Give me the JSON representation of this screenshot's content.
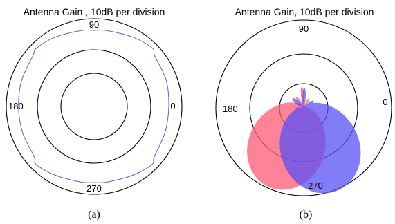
{
  "chart_data": [
    {
      "type": "polar",
      "title": "Antenna Gain , 10dB per division",
      "angle_labels": [
        "90",
        "180",
        "0",
        "270"
      ],
      "caption": "(a)",
      "radial_divisions": 3,
      "series": [
        {
          "color": "#5a5af0",
          "style": "line",
          "angles_deg": [
            0,
            20,
            40,
            45,
            60,
            80,
            90,
            100,
            120,
            135,
            140,
            160,
            180,
            200,
            220,
            225,
            240,
            260,
            270,
            280,
            300,
            315,
            320,
            340
          ],
          "radius_divisions": [
            2.55,
            2.62,
            2.7,
            2.82,
            2.72,
            2.63,
            2.6,
            2.63,
            2.72,
            2.8,
            2.72,
            2.63,
            2.58,
            2.6,
            2.67,
            2.8,
            2.7,
            2.62,
            2.6,
            2.62,
            2.7,
            2.8,
            2.68,
            2.58
          ]
        }
      ]
    },
    {
      "type": "polar",
      "title": "Antenna Gain, 10dB per division",
      "angle_labels": [
        "90",
        "180",
        "0",
        "270"
      ],
      "caption": "(b)",
      "radial_divisions": 3,
      "series": [
        {
          "color": "#ff5a73",
          "style": "filled",
          "opacity": 0.75,
          "lobes": [
            {
              "center_angle_deg": 246,
              "width_deg": 62,
              "peak_divisions": 2.95
            },
            {
              "center_angle_deg": 95,
              "width_deg": 10,
              "peak_divisions": 0.72
            },
            {
              "center_angle_deg": 125,
              "width_deg": 14,
              "peak_divisions": 0.45
            },
            {
              "center_angle_deg": 60,
              "width_deg": 12,
              "peak_divisions": 0.38
            }
          ]
        },
        {
          "color": "#5a50f5",
          "style": "filled",
          "opacity": 0.75,
          "lobes": [
            {
              "center_angle_deg": 292,
              "width_deg": 62,
              "peak_divisions": 3.05
            },
            {
              "center_angle_deg": 88,
              "width_deg": 10,
              "peak_divisions": 0.68
            },
            {
              "center_angle_deg": 140,
              "width_deg": 16,
              "peak_divisions": 0.5
            },
            {
              "center_angle_deg": 35,
              "width_deg": 14,
              "peak_divisions": 0.42
            },
            {
              "center_angle_deg": 185,
              "width_deg": 12,
              "peak_divisions": 0.3
            },
            {
              "center_angle_deg": 0,
              "width_deg": 12,
              "peak_divisions": 0.28
            }
          ]
        }
      ]
    }
  ]
}
